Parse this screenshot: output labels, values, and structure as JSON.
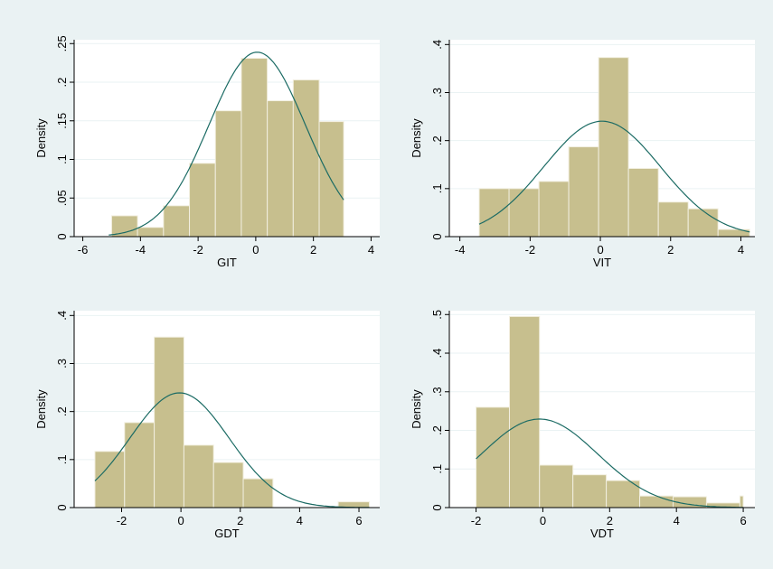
{
  "colors": {
    "outer_background": "#eaf2f3",
    "plot_background": "#ffffff",
    "bar_fill": "#c7bf8e",
    "bar_stroke": "#f2efe0",
    "curve": "#1b6b64",
    "grid": "#eaf2f3",
    "axis": "#000000"
  },
  "chart_data": [
    {
      "type": "bar",
      "title": "",
      "xlabel": "GIT",
      "ylabel": "Density",
      "xlim": [
        -6.3,
        4.3
      ],
      "ylim": [
        0,
        0.255
      ],
      "xticks": [
        -6,
        -4,
        -2,
        0,
        2,
        4
      ],
      "xtick_labels": [
        "-6",
        "-4",
        "-2",
        "0",
        "2",
        "4"
      ],
      "yticks": [
        0,
        0.05,
        0.1,
        0.15,
        0.2,
        0.25
      ],
      "ytick_labels": [
        "0",
        ".05",
        ".1",
        ".15",
        ".2",
        ".25"
      ],
      "grid": true,
      "bin_edges": [
        -5.0,
        -4.1,
        -3.2,
        -2.3,
        -1.4,
        -0.5,
        0.4,
        1.3,
        2.2,
        3.05
      ],
      "values": [
        0.027,
        0.012,
        0.04,
        0.095,
        0.163,
        0.231,
        0.176,
        0.203,
        0.149
      ],
      "normal_curve": {
        "mean": 0.05,
        "sd": 1.67,
        "x_range": [
          -5.1,
          3.05
        ]
      }
    },
    {
      "type": "bar",
      "title": "",
      "xlabel": "VIT",
      "ylabel": "Density",
      "xlim": [
        -4.3,
        4.4
      ],
      "ylim": [
        0,
        0.41
      ],
      "xticks": [
        -4,
        -2,
        0,
        2,
        4
      ],
      "xtick_labels": [
        "-4",
        "-2",
        "0",
        "2",
        "4"
      ],
      "yticks": [
        0,
        0.1,
        0.2,
        0.3,
        0.4
      ],
      "ytick_labels": [
        "0",
        ".1",
        ".2",
        ".3",
        ".4"
      ],
      "grid": true,
      "bin_edges": [
        -3.45,
        -2.6,
        -1.75,
        -0.9,
        -0.05,
        0.8,
        1.65,
        2.5,
        3.35,
        4.25
      ],
      "values": [
        0.1,
        0.1,
        0.115,
        0.187,
        0.373,
        0.142,
        0.072,
        0.058,
        0.015
      ],
      "normal_curve": {
        "mean": 0.05,
        "sd": 1.66,
        "x_range": [
          -3.45,
          4.25
        ]
      }
    },
    {
      "type": "bar",
      "title": "",
      "xlabel": "GDT",
      "ylabel": "Density",
      "xlim": [
        -3.6,
        6.7
      ],
      "ylim": [
        0,
        0.41
      ],
      "xticks": [
        -2,
        0,
        2,
        4,
        6
      ],
      "xtick_labels": [
        "-2",
        "0",
        "2",
        "4",
        "6"
      ],
      "yticks": [
        0,
        0.1,
        0.2,
        0.3,
        0.4
      ],
      "ytick_labels": [
        "0",
        ".1",
        ".2",
        ".3",
        ".4"
      ],
      "grid": true,
      "bin_edges": [
        -2.9,
        -1.9,
        -0.9,
        0.1,
        1.1,
        2.1,
        3.1,
        4.1,
        5.3,
        6.35
      ],
      "values": [
        0.117,
        0.177,
        0.355,
        0.13,
        0.094,
        0.06,
        0.0,
        0.0,
        0.012
      ],
      "normal_curve": {
        "mean": -0.05,
        "sd": 1.67,
        "x_range": [
          -2.9,
          6.35
        ]
      }
    },
    {
      "type": "bar",
      "title": "",
      "xlabel": "VDT",
      "ylabel": "Density",
      "xlim": [
        -2.8,
        6.35
      ],
      "ylim": [
        0,
        0.51
      ],
      "xticks": [
        -2,
        0,
        2,
        4,
        6
      ],
      "xtick_labels": [
        "-2",
        "0",
        "2",
        "4",
        "6"
      ],
      "yticks": [
        0,
        0.1,
        0.2,
        0.3,
        0.4,
        0.5
      ],
      "ytick_labels": [
        "0",
        ".1",
        ".2",
        ".3",
        ".4",
        ".5"
      ],
      "grid": true,
      "bin_edges": [
        -2.0,
        -1.0,
        -0.1,
        0.9,
        1.9,
        2.9,
        3.9,
        4.9,
        5.9,
        6.0
      ],
      "values": [
        0.26,
        0.495,
        0.11,
        0.085,
        0.07,
        0.03,
        0.028,
        0.012,
        0.03
      ],
      "normal_curve": {
        "mean": -0.1,
        "sd": 1.74,
        "x_range": [
          -2.0,
          6.0
        ]
      }
    }
  ]
}
